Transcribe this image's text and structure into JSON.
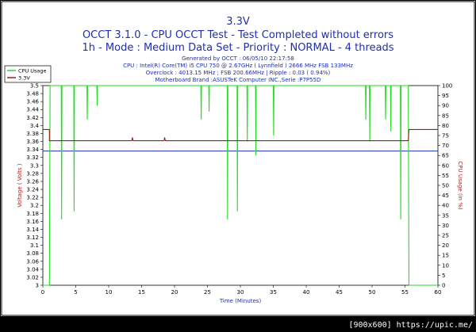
{
  "titles": {
    "main": "3.3V",
    "line2": "OCCT 3.1.0 - CPU OCCT Test - Test Completed without errors",
    "line3": "1h - Mode : Medium Data Set - Priority : NORMAL - 4 threads"
  },
  "info": {
    "generated": "Generated by OCCT : 06/05/10 22:17:58",
    "cpu": "CPU : Intel(R) Core(TM) i5 CPU 750 @ 2.67GHz ( Lynnfield ) 2666 MHz FSB 133MHz",
    "overclock": "Overclock : 4013.15 MHz ; FSB 200.66MHz | Ripple : 0.03 ( 0.94%)",
    "motherboard": "Motherboard Brand :ASUSTeK Computer INC.,Serie :P7P55D"
  },
  "watermark": "[900x600] https://upic.me/",
  "colors": {
    "cpu_usage": "#22dd22",
    "voltage": "#a01a1a",
    "reference": "#1f2fb0",
    "title": "#1f2fb0",
    "frame": "#000000"
  },
  "chart_data": {
    "type": "line",
    "xlabel": "Time (Minutes)",
    "ylabel": "Voltage ( Volts )",
    "y2label": "CPU Usage (in %)",
    "xlim": [
      0,
      60
    ],
    "ylim": [
      3.0,
      3.5
    ],
    "y2lim": [
      0,
      100
    ],
    "x_ticks": [
      "0",
      "5",
      "10",
      "15",
      "20",
      "25",
      "30",
      "35",
      "40",
      "45",
      "50",
      "55",
      "60"
    ],
    "y_ticks": [
      "3",
      "3.02",
      "3.04",
      "3.06",
      "3.08",
      "3.1",
      "3.12",
      "3.14",
      "3.16",
      "3.18",
      "3.2",
      "3.22",
      "3.24",
      "3.26",
      "3.28",
      "3.3",
      "3.32",
      "3.34",
      "3.36",
      "3.38",
      "3.4",
      "3.42",
      "3.44",
      "3.46",
      "3.48",
      "3.5"
    ],
    "y2_ticks": [
      "0",
      "5",
      "10",
      "15",
      "20",
      "25",
      "30",
      "35",
      "40",
      "45",
      "50",
      "55",
      "60",
      "65",
      "70",
      "75",
      "80",
      "85",
      "90",
      "95",
      "100"
    ],
    "legend": {
      "position": "top-left",
      "entries": [
        "CPU Usage",
        "3.3V"
      ]
    },
    "reference_line": 3.336,
    "series": [
      {
        "name": "3.3V",
        "axis": "left",
        "x": [
          0,
          1.0,
          1.0,
          13.5,
          13.6,
          13.7,
          18.4,
          18.5,
          18.6,
          55.5,
          55.6,
          60
        ],
        "values": [
          3.39,
          3.39,
          3.362,
          3.362,
          3.37,
          3.362,
          3.362,
          3.37,
          3.362,
          3.362,
          3.39,
          3.39
        ]
      },
      {
        "name": "CPU Usage",
        "axis": "right",
        "x": [
          0,
          1.0,
          1.1,
          2.8,
          2.85,
          2.9,
          4.7,
          4.75,
          4.8,
          6.7,
          6.75,
          6.8,
          8.2,
          8.25,
          8.3,
          24.0,
          24.05,
          24.1,
          25.2,
          25.25,
          25.3,
          28.0,
          28.05,
          28.1,
          29.5,
          29.55,
          29.6,
          31.0,
          31.05,
          31.1,
          32.3,
          32.35,
          32.4,
          35.0,
          35.05,
          35.1,
          49.0,
          49.05,
          49.1,
          49.6,
          49.65,
          49.7,
          52.0,
          52.05,
          52.1,
          52.8,
          52.85,
          52.9,
          54.3,
          54.35,
          54.4,
          55.5,
          55.6,
          60
        ],
        "values": [
          0,
          0,
          100,
          100,
          33,
          100,
          100,
          37,
          100,
          100,
          83,
          100,
          100,
          90,
          100,
          100,
          83,
          100,
          100,
          87,
          100,
          100,
          33,
          100,
          100,
          37,
          100,
          100,
          72,
          100,
          100,
          65,
          100,
          100,
          75,
          100,
          100,
          83,
          100,
          100,
          72,
          100,
          100,
          83,
          100,
          100,
          77,
          100,
          100,
          33,
          100,
          100,
          0,
          0
        ]
      }
    ]
  }
}
